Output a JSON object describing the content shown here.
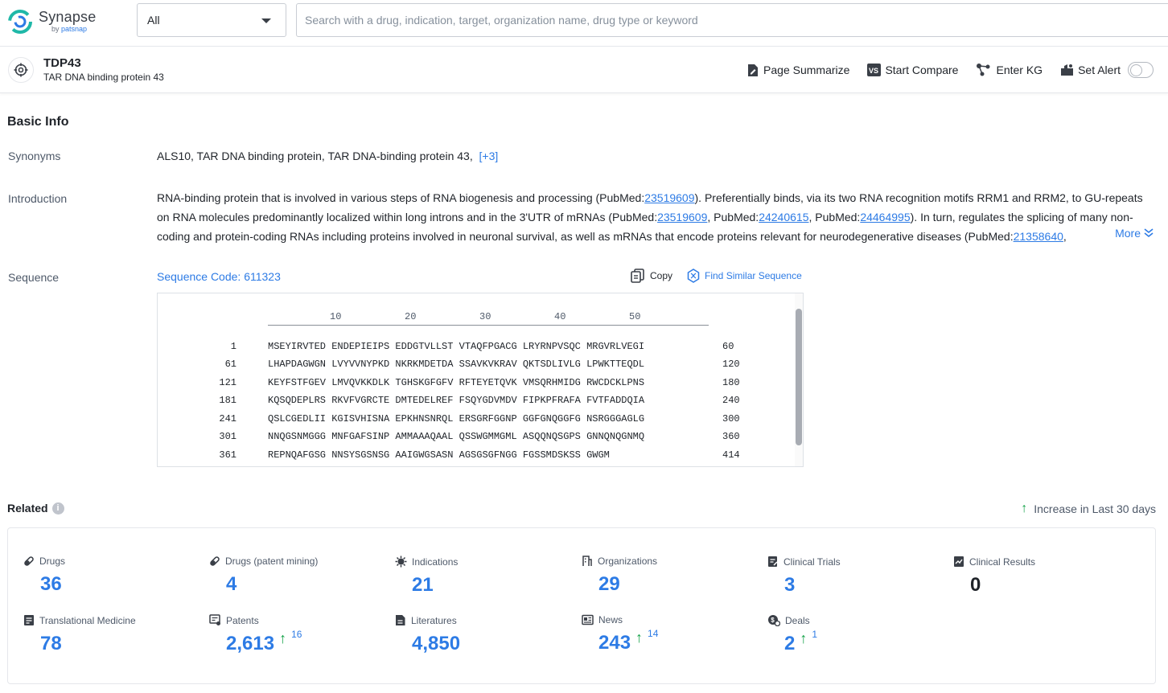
{
  "app": {
    "logo_text": "Synapse",
    "logo_by": "by",
    "logo_brand": "patsnap"
  },
  "search": {
    "scope": "All",
    "placeholder": "Search with a drug, indication, target, organization name, drug type or keyword"
  },
  "target": {
    "name": "TDP43",
    "full_name": "TAR DNA binding protein 43"
  },
  "actions": {
    "summarize": "Page Summarize",
    "compare": "Start Compare",
    "kg": "Enter KG",
    "alert": "Set Alert"
  },
  "basic_info": {
    "title": "Basic Info",
    "synonyms_label": "Synonyms",
    "synonyms": "ALS10,  TAR DNA binding protein,  TAR DNA-binding protein 43,",
    "synonyms_more": "[+3]",
    "intro_label": "Introduction",
    "intro": {
      "t1": "RNA-binding protein that is involved in various steps of RNA biogenesis and processing (PubMed:",
      "p1": "23519609",
      "t2": "). Preferentially binds, via its two RNA recognition motifs RRM1 and RRM2, to GU-repeats on RNA molecules predominantly localized within long introns and in the 3'UTR of mRNAs (PubMed:",
      "p2": "23519609",
      "t3": ", PubMed:",
      "p3": "24240615",
      "t4": ", PubMed:",
      "p4": "24464995",
      "t5": "). In turn, regulates the splicing of many non-coding and protein-coding RNAs including proteins involved in neuronal survival, as well as mRNAs that encode proteins relevant for neurodegenerative diseases (PubMed:",
      "p5": "21358640",
      "t6": ","
    },
    "more": "More",
    "sequence_label": "Sequence",
    "sequence_code": "Sequence Code: 611323",
    "copy": "Copy",
    "find_similar": "Find Similar Sequence"
  },
  "sequence": {
    "ruler": [
      "10",
      "20",
      "30",
      "40",
      "50"
    ],
    "rows": [
      {
        "start": "1",
        "seq": "MSEYIRVTED ENDEPIEIPS EDDGTVLLST VTAQFPGACG LRYRNPVSQC MRGVRLVEGI",
        "end": "60"
      },
      {
        "start": "61",
        "seq": "LHAPDAGWGN LVYVVNYPKD NKRKMDETDA SSAVKVKRAV QKTSDLIVLG LPWKTTEQDL",
        "end": "120"
      },
      {
        "start": "121",
        "seq": "KEYFSTFGEV LMVQVKKDLK TGHSKGFGFV RFTEYETQVK VMSQRHMIDG RWCDCKLPNS",
        "end": "180"
      },
      {
        "start": "181",
        "seq": "KQSQDEPLRS RKVFVGRCTE DMTEDELREF FSQYGDVMDV FIPKPFRAFA FVTFADDQIA",
        "end": "240"
      },
      {
        "start": "241",
        "seq": "QSLCGEDLII KGISVHISNA EPKHNSNRQL ERSGRFGGNP GGFGNQGGFG NSRGGGAGLG",
        "end": "300"
      },
      {
        "start": "301",
        "seq": "NNQGSNMGGG MNFGAFSINP AMMAAAQAAL QSSWGMMGML ASQQNQSGPS GNNQNQGNMQ",
        "end": "360"
      },
      {
        "start": "361",
        "seq": "REPNQAFGSG NNSYSGSNSG AAIGWGSASN AGSGSGFNGG FGSSMDSKSS GWGM",
        "end": "414"
      }
    ]
  },
  "related": {
    "title": "Related",
    "info": "i",
    "increase_label": "Increase in Last 30 days",
    "stats": [
      {
        "label": "Drugs",
        "value": "36",
        "icon": "pill-icon"
      },
      {
        "label": "Drugs (patent mining)",
        "value": "4",
        "icon": "pill-icon"
      },
      {
        "label": "Indications",
        "value": "21",
        "icon": "virus-icon"
      },
      {
        "label": "Organizations",
        "value": "29",
        "icon": "building-icon"
      },
      {
        "label": "Clinical Trials",
        "value": "3",
        "icon": "clipboard-icon"
      },
      {
        "label": "Clinical Results",
        "value": "0",
        "icon": "results-icon"
      },
      {
        "label": "Translational Medicine",
        "value": "78",
        "icon": "doc-icon"
      },
      {
        "label": "Patents",
        "value": "2,613",
        "increase": "16",
        "icon": "patent-icon"
      },
      {
        "label": "Literatures",
        "value": "4,850",
        "icon": "literature-icon"
      },
      {
        "label": "News",
        "value": "243",
        "increase": "14",
        "icon": "news-icon"
      },
      {
        "label": "Deals",
        "value": "2",
        "increase": "1",
        "icon": "deal-icon"
      }
    ]
  },
  "colors": {
    "accent": "#2d7be5",
    "increase": "#16a34a",
    "text": "#1f2329",
    "muted": "#4e5969"
  }
}
